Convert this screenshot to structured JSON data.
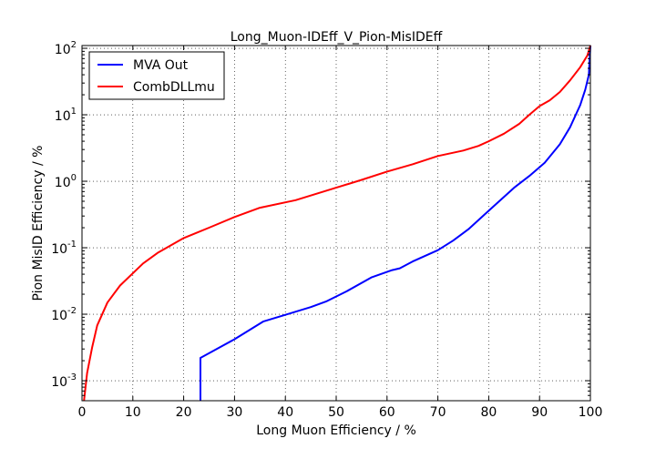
{
  "chart_data": {
    "type": "line",
    "title": "Long_Muon-IDEff_V_Pion-MisIDEff",
    "xlabel": "Long Muon Efficiency / %",
    "ylabel": "Pion MisID Efficiency / %",
    "xlim": [
      0,
      100
    ],
    "ylim": [
      0.0005,
      110
    ],
    "y_scale": "log",
    "grid": true,
    "legend_position": "top-left",
    "x_ticks": [
      "0",
      "10",
      "20",
      "30",
      "40",
      "50",
      "60",
      "70",
      "80",
      "90",
      "100"
    ],
    "y_ticks": [
      {
        "base": "10",
        "exp": "-3",
        "value": 0.001
      },
      {
        "base": "10",
        "exp": "-2",
        "value": 0.01
      },
      {
        "base": "10",
        "exp": "-1",
        "value": 0.1
      },
      {
        "base": "10",
        "exp": "0",
        "value": 1
      },
      {
        "base": "10",
        "exp": "1",
        "value": 10
      },
      {
        "base": "10",
        "exp": "2",
        "value": 100
      }
    ],
    "series": [
      {
        "name": "MVA Out",
        "color": "#0000ff",
        "points": [
          [
            23.3,
            0.0005
          ],
          [
            23.3,
            0.0022
          ],
          [
            30,
            0.0042
          ],
          [
            35.7,
            0.0078
          ],
          [
            40,
            0.0098
          ],
          [
            45,
            0.0128
          ],
          [
            48,
            0.0155
          ],
          [
            52,
            0.022
          ],
          [
            57,
            0.036
          ],
          [
            61,
            0.046
          ],
          [
            62.5,
            0.049
          ],
          [
            65,
            0.062
          ],
          [
            70,
            0.092
          ],
          [
            73,
            0.128
          ],
          [
            76,
            0.19
          ],
          [
            80,
            0.36
          ],
          [
            85,
            0.8
          ],
          [
            88,
            1.2
          ],
          [
            91,
            1.9
          ],
          [
            94,
            3.6
          ],
          [
            96,
            6.5
          ],
          [
            98,
            14
          ],
          [
            99,
            24
          ],
          [
            99.7,
            40
          ],
          [
            100,
            110
          ]
        ]
      },
      {
        "name": "CombDLLmu",
        "color": "#ff0000",
        "points": [
          [
            0.4,
            0.0005
          ],
          [
            1,
            0.0013
          ],
          [
            2,
            0.0032
          ],
          [
            3,
            0.0068
          ],
          [
            5,
            0.015
          ],
          [
            7.5,
            0.027
          ],
          [
            12,
            0.058
          ],
          [
            15,
            0.085
          ],
          [
            20,
            0.14
          ],
          [
            25,
            0.2
          ],
          [
            30,
            0.29
          ],
          [
            35,
            0.4
          ],
          [
            42,
            0.52
          ],
          [
            50,
            0.8
          ],
          [
            55,
            1.05
          ],
          [
            60,
            1.4
          ],
          [
            65,
            1.8
          ],
          [
            70,
            2.4
          ],
          [
            75,
            2.9
          ],
          [
            78,
            3.4
          ],
          [
            80,
            4.0
          ],
          [
            83,
            5.2
          ],
          [
            86,
            7.3
          ],
          [
            88,
            10
          ],
          [
            90,
            13.5
          ],
          [
            92,
            16.5
          ],
          [
            94,
            22
          ],
          [
            96,
            33
          ],
          [
            98,
            52
          ],
          [
            99.4,
            78
          ],
          [
            100,
            110
          ]
        ]
      }
    ]
  }
}
